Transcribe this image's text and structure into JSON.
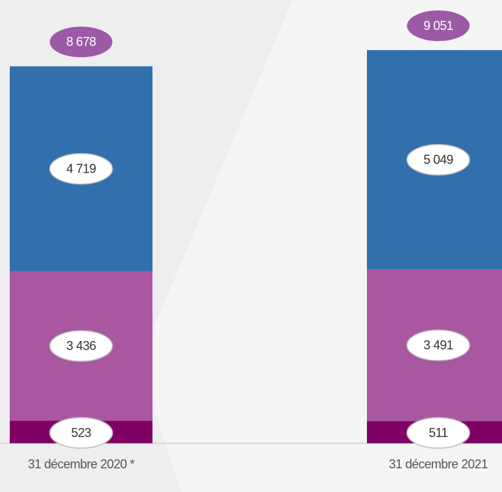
{
  "chart_data": {
    "type": "stacked_bar",
    "categories": [
      "31 décembre 2020 *",
      "31 décembre 2021"
    ],
    "series": [
      {
        "color": "#800066",
        "values": [
          523,
          511
        ],
        "value_labels": [
          "523",
          "511"
        ]
      },
      {
        "color": "#a957a0",
        "values": [
          3436,
          3491
        ],
        "value_labels": [
          "3 436",
          "3 491"
        ]
      },
      {
        "color": "#3170ad",
        "values": [
          4719,
          5049
        ],
        "value_labels": [
          "4 719",
          "5 049"
        ]
      }
    ],
    "totals": [
      8678,
      9051
    ],
    "total_labels": [
      "8 678",
      "9 051"
    ],
    "total_color": "#9b59a6"
  }
}
